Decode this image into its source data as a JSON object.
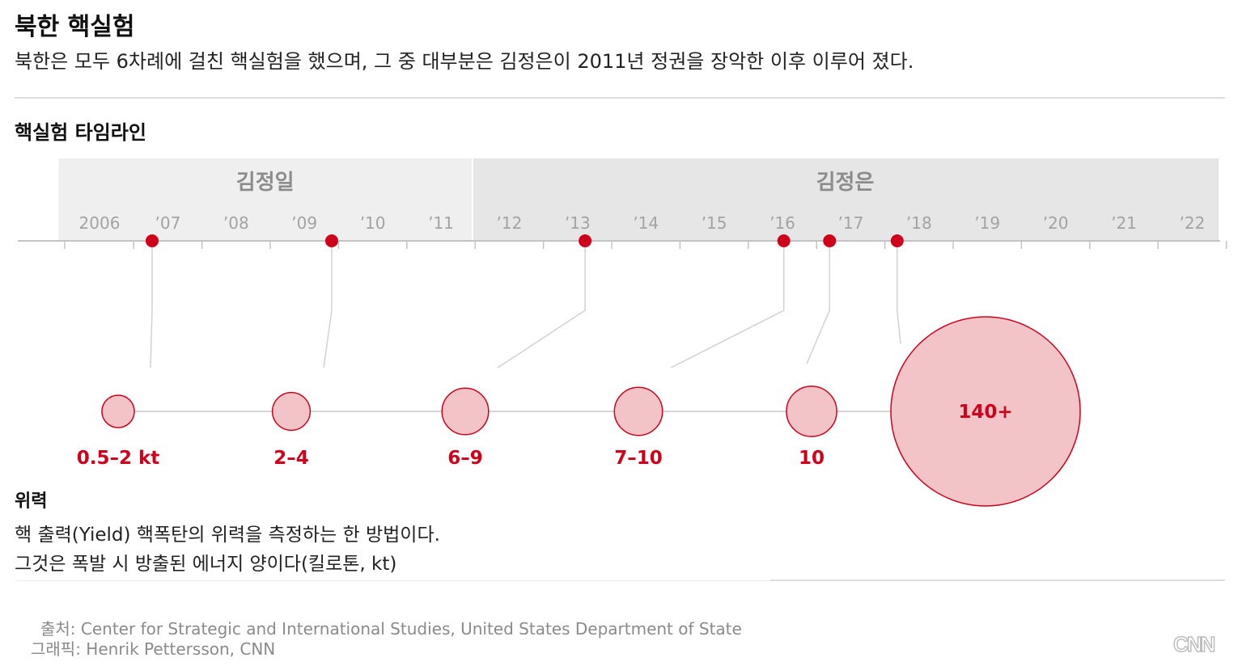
{
  "header": {
    "title": "북한 핵실험",
    "subtitle": "북한은 모두 6차례에 걸친 핵실험을 했으며, 그 중 대부분은 김정은이 2011년 정권을 장악한 이후 이루어 졌다."
  },
  "chart_data": {
    "type": "timeline",
    "title": "핵실험 타임라인",
    "eras": [
      {
        "name": "김정일",
        "start": 2005.4,
        "end": 2011.45,
        "color": "#efefef"
      },
      {
        "name": "김정은",
        "start": 2011.45,
        "end": 2022.4,
        "color": "#e6e6e6"
      }
    ],
    "x_ticks": [
      {
        "value": 2006,
        "label": "2006"
      },
      {
        "value": 2007,
        "label": "’07"
      },
      {
        "value": 2008,
        "label": "’08"
      },
      {
        "value": 2009,
        "label": "’09"
      },
      {
        "value": 2010,
        "label": "’10"
      },
      {
        "value": 2011,
        "label": "’11"
      },
      {
        "value": 2012,
        "label": "’12"
      },
      {
        "value": 2013,
        "label": "’13"
      },
      {
        "value": 2014,
        "label": "’14"
      },
      {
        "value": 2015,
        "label": "’15"
      },
      {
        "value": 2016,
        "label": "’16"
      },
      {
        "value": 2017,
        "label": "’17"
      },
      {
        "value": 2018,
        "label": "’18"
      },
      {
        "value": 2019,
        "label": "’19"
      },
      {
        "value": 2020,
        "label": "’20"
      },
      {
        "value": 2021,
        "label": "’21"
      },
      {
        "value": 2022,
        "label": "’22"
      }
    ],
    "tests": [
      {
        "date": 2006.77,
        "label": "0.5–2 kt",
        "yield_kt": 1.25
      },
      {
        "date": 2009.4,
        "label": "2–4",
        "yield_kt": 3
      },
      {
        "date": 2013.11,
        "label": "6–9",
        "yield_kt": 7.5
      },
      {
        "date": 2016.02,
        "label": "7–10",
        "yield_kt": 8.5
      },
      {
        "date": 2016.69,
        "label": "10",
        "yield_kt": 10
      },
      {
        "date": 2017.68,
        "label": "140+",
        "yield_kt": 140
      }
    ],
    "colors": {
      "marker": "#d0021b",
      "bubble_fill": "#f2c4c8",
      "bubble_stroke": "#d0021b",
      "label": "#d0021b"
    }
  },
  "definition": {
    "title": "위력",
    "line1": "핵 출력(Yield) 핵폭탄의 위력을 측정하는 한 방법이다.",
    "line2": "그것은 폭발 시 방출된 에너지 양이다(킬로톤, kt)"
  },
  "footer": {
    "source": "출처: Center for Strategic and International Studies, United States Department of State",
    "credit": "그래픽: Henrik Pettersson, CNN",
    "logo": "CNN"
  }
}
